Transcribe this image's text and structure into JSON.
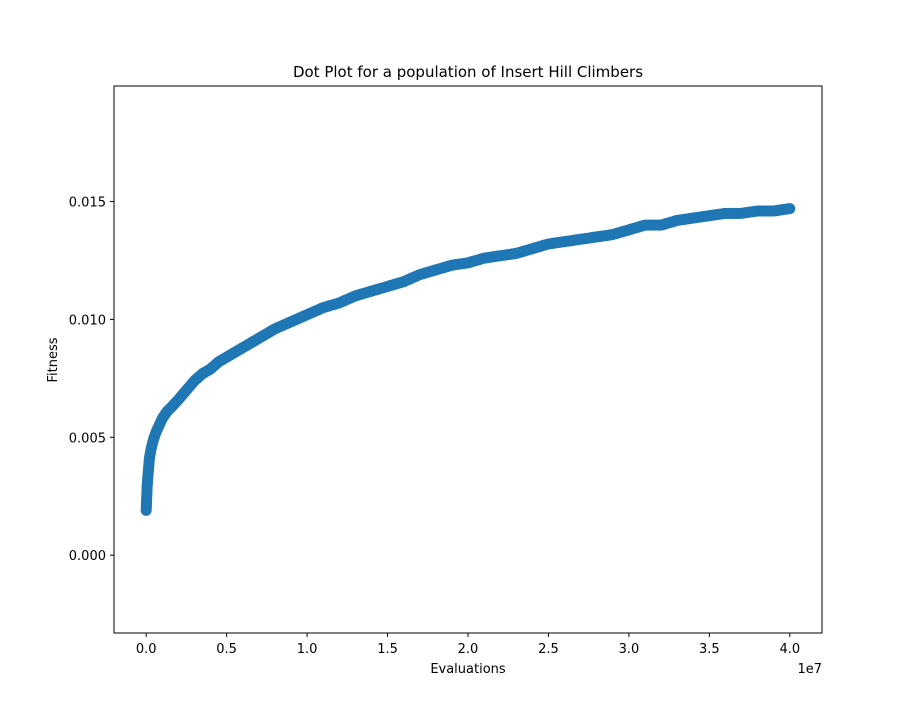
{
  "chart_data": {
    "type": "scatter",
    "title": "Dot Plot for a population of Insert Hill Climbers",
    "xlabel": "Evaluations",
    "ylabel": "Fitness",
    "x_offset_label": "1e7",
    "xlim": [
      -0.2,
      4.2
    ],
    "ylim": [
      -0.0033,
      0.0199
    ],
    "x_unit_multiplier": 10000000,
    "x_ticks": [
      {
        "value": 0.0,
        "label": "0.0"
      },
      {
        "value": 0.5,
        "label": "0.5"
      },
      {
        "value": 1.0,
        "label": "1.0"
      },
      {
        "value": 1.5,
        "label": "1.5"
      },
      {
        "value": 2.0,
        "label": "2.0"
      },
      {
        "value": 2.5,
        "label": "2.5"
      },
      {
        "value": 3.0,
        "label": "3.0"
      },
      {
        "value": 3.5,
        "label": "3.5"
      },
      {
        "value": 4.0,
        "label": "4.0"
      }
    ],
    "y_ticks": [
      {
        "value": 0.0,
        "label": "0.000"
      },
      {
        "value": 0.005,
        "label": "0.005"
      },
      {
        "value": 0.01,
        "label": "0.010"
      },
      {
        "value": 0.015,
        "label": "0.015"
      }
    ],
    "grid": false,
    "marker_color": "#1f77b4",
    "series": [
      {
        "points": [
          [
            0.0,
            0.0019
          ],
          [
            0.003,
            0.0024
          ],
          [
            0.006,
            0.0029
          ],
          [
            0.01,
            0.0033
          ],
          [
            0.015,
            0.0037
          ],
          [
            0.02,
            0.0041
          ],
          [
            0.03,
            0.0045
          ],
          [
            0.045,
            0.0049
          ],
          [
            0.06,
            0.0052
          ],
          [
            0.08,
            0.0055
          ],
          [
            0.1,
            0.0058
          ],
          [
            0.13,
            0.0061
          ],
          [
            0.16,
            0.0063
          ],
          [
            0.2,
            0.0066
          ],
          [
            0.25,
            0.007
          ],
          [
            0.3,
            0.0074
          ],
          [
            0.35,
            0.0077
          ],
          [
            0.4,
            0.0079
          ],
          [
            0.45,
            0.0082
          ],
          [
            0.5,
            0.0084
          ],
          [
            0.6,
            0.0088
          ],
          [
            0.7,
            0.0092
          ],
          [
            0.8,
            0.0096
          ],
          [
            0.9,
            0.0099
          ],
          [
            1.0,
            0.0102
          ],
          [
            1.1,
            0.0105
          ],
          [
            1.2,
            0.0107
          ],
          [
            1.3,
            0.011
          ],
          [
            1.4,
            0.0112
          ],
          [
            1.5,
            0.0114
          ],
          [
            1.6,
            0.0116
          ],
          [
            1.7,
            0.0119
          ],
          [
            1.8,
            0.0121
          ],
          [
            1.9,
            0.0123
          ],
          [
            2.0,
            0.0124
          ],
          [
            2.1,
            0.0126
          ],
          [
            2.2,
            0.0127
          ],
          [
            2.3,
            0.0128
          ],
          [
            2.4,
            0.013
          ],
          [
            2.5,
            0.0132
          ],
          [
            2.6,
            0.0133
          ],
          [
            2.7,
            0.0134
          ],
          [
            2.8,
            0.0135
          ],
          [
            2.9,
            0.0136
          ],
          [
            3.0,
            0.0138
          ],
          [
            3.1,
            0.014
          ],
          [
            3.2,
            0.014
          ],
          [
            3.3,
            0.0142
          ],
          [
            3.4,
            0.0143
          ],
          [
            3.5,
            0.0144
          ],
          [
            3.6,
            0.0145
          ],
          [
            3.7,
            0.0145
          ],
          [
            3.8,
            0.0146
          ],
          [
            3.9,
            0.0146
          ],
          [
            4.0,
            0.0147
          ]
        ]
      }
    ]
  }
}
